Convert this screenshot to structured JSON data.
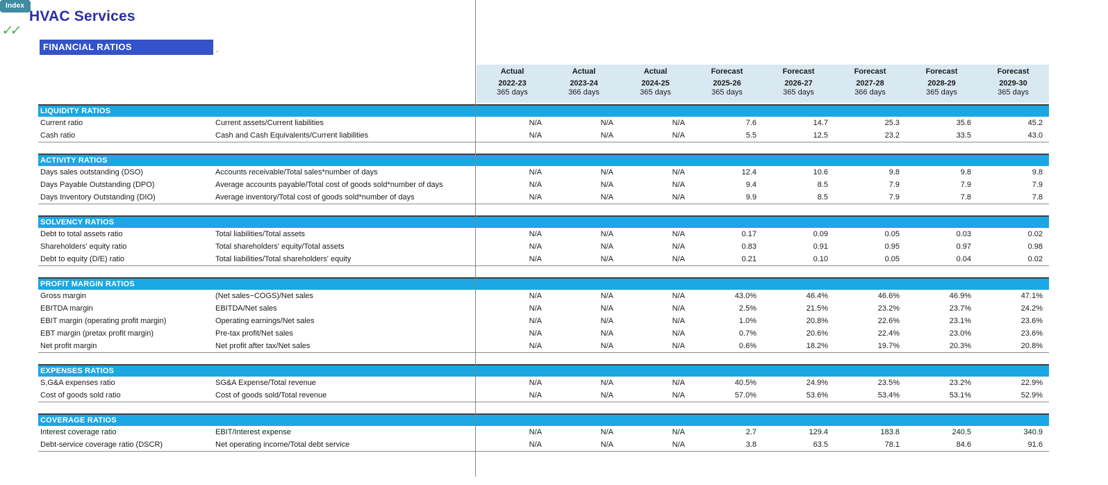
{
  "header": {
    "index_button": "Index",
    "checkmarks": "✓✓",
    "title": "HVAC Services",
    "banner": "FINANCIAL RATIOS",
    "banner_suffix": "."
  },
  "columns": [
    {
      "type": "Actual",
      "year": "2022-23",
      "days": "365 days"
    },
    {
      "type": "Actual",
      "year": "2023-24",
      "days": "366 days"
    },
    {
      "type": "Actual",
      "year": "2024-25",
      "days": "365 days"
    },
    {
      "type": "Forecast",
      "year": "2025-26",
      "days": "365 days"
    },
    {
      "type": "Forecast",
      "year": "2026-27",
      "days": "365 days"
    },
    {
      "type": "Forecast",
      "year": "2027-28",
      "days": "366 days"
    },
    {
      "type": "Forecast",
      "year": "2028-29",
      "days": "365 days"
    },
    {
      "type": "Forecast",
      "year": "2029-30",
      "days": "365 days"
    }
  ],
  "sections": [
    {
      "title": "LIQUIDITY RATIOS",
      "rows": [
        {
          "label": "Current ratio",
          "formula": "Current assets/Current liabilities",
          "values": [
            "N/A",
            "N/A",
            "N/A",
            "7.6",
            "14.7",
            "25.3",
            "35.6",
            "45.2"
          ]
        },
        {
          "label": "Cash ratio",
          "formula": "Cash and Cash Equivalents/Current liabilities",
          "values": [
            "N/A",
            "N/A",
            "N/A",
            "5.5",
            "12.5",
            "23.2",
            "33.5",
            "43.0"
          ]
        }
      ]
    },
    {
      "title": "ACTIVITY RATIOS",
      "rows": [
        {
          "label": "Days sales outstanding (DSO)",
          "formula": "Accounts receivable/Total sales*number of days",
          "values": [
            "N/A",
            "N/A",
            "N/A",
            "12.4",
            "10.6",
            "9.8",
            "9.8",
            "9.8"
          ]
        },
        {
          "label": "Days Payable Outstanding (DPO)",
          "formula": "Average accounts payable/Total cost of goods sold*number of days",
          "values": [
            "N/A",
            "N/A",
            "N/A",
            "9.4",
            "8.5",
            "7.9",
            "7.9",
            "7.9"
          ]
        },
        {
          "label": "Days Inventory Outstanding (DIO)",
          "formula": "Average inventory/Total cost of goods sold*number of days",
          "values": [
            "N/A",
            "N/A",
            "N/A",
            "9.9",
            "8.5",
            "7.9",
            "7.8",
            "7.8"
          ]
        }
      ]
    },
    {
      "title": "SOLVENCY RATIOS",
      "rows": [
        {
          "label": "Debt to total assets ratio",
          "formula": "Total liabilities/Total assets",
          "values": [
            "N/A",
            "N/A",
            "N/A",
            "0.17",
            "0.09",
            "0.05",
            "0.03",
            "0.02"
          ]
        },
        {
          "label": "Shareholders' equity ratio",
          "formula": "Total shareholders' equity/Total assets",
          "values": [
            "N/A",
            "N/A",
            "N/A",
            "0.83",
            "0.91",
            "0.95",
            "0.97",
            "0.98"
          ]
        },
        {
          "label": "Debt to equity (D/E) ratio",
          "formula": "Total liabilities/Total shareholders' equity",
          "values": [
            "N/A",
            "N/A",
            "N/A",
            "0.21",
            "0.10",
            "0.05",
            "0.04",
            "0.02"
          ]
        }
      ]
    },
    {
      "title": "PROFIT MARGIN RATIOS",
      "rows": [
        {
          "label": "Gross margin",
          "formula": "(Net sales−COGS)/Net sales",
          "values": [
            "N/A",
            "N/A",
            "N/A",
            "43.0%",
            "46.4%",
            "46.6%",
            "46.9%",
            "47.1%"
          ]
        },
        {
          "label": "EBITDA margin",
          "formula": "EBITDA/Net sales",
          "values": [
            "N/A",
            "N/A",
            "N/A",
            "2.5%",
            "21.5%",
            "23.2%",
            "23.7%",
            "24.2%"
          ]
        },
        {
          "label": "EBIT margin (operating profit margin)",
          "formula": "Operating earnings/Net sales",
          "values": [
            "N/A",
            "N/A",
            "N/A",
            "1.0%",
            "20.8%",
            "22.6%",
            "23.1%",
            "23.6%"
          ]
        },
        {
          "label": "EBT margin (pretax profit margin)",
          "formula": "Pre-tax profit/Net sales",
          "values": [
            "N/A",
            "N/A",
            "N/A",
            "0.7%",
            "20.6%",
            "22.4%",
            "23.0%",
            "23.6%"
          ]
        },
        {
          "label": "Net profit margin",
          "formula": "Net profit after tax/Net sales",
          "values": [
            "N/A",
            "N/A",
            "N/A",
            "0.6%",
            "18.2%",
            "19.7%",
            "20.3%",
            "20.8%"
          ]
        }
      ]
    },
    {
      "title": "EXPENSES RATIOS",
      "rows": [
        {
          "label": "S,G&A expenses ratio",
          "formula": "SG&A Expense/Total revenue",
          "values": [
            "N/A",
            "N/A",
            "N/A",
            "40.5%",
            "24.9%",
            "23.5%",
            "23.2%",
            "22.9%"
          ]
        },
        {
          "label": "Cost of goods sold ratio",
          "formula": "Cost of goods sold/Total revenue",
          "values": [
            "N/A",
            "N/A",
            "N/A",
            "57.0%",
            "53.6%",
            "53.4%",
            "53.1%",
            "52.9%"
          ]
        }
      ]
    },
    {
      "title": "COVERAGE RATIOS",
      "rows": [
        {
          "label": "Interest coverage ratio",
          "formula": "EBIT/Interest expense",
          "values": [
            "N/A",
            "N/A",
            "N/A",
            "2.7",
            "129.4",
            "183.8",
            "240.5",
            "340.9"
          ]
        },
        {
          "label": "Debt-service coverage ratio (DSCR)",
          "formula": "Net operating income/Total debt service",
          "values": [
            "N/A",
            "N/A",
            "N/A",
            "3.8",
            "63.5",
            "78.1",
            "84.6",
            "91.6"
          ]
        }
      ]
    }
  ],
  "colors": {
    "section_bar_bg": "#1BA7E3",
    "header_band_bg": "#D9E9F2",
    "banner_bg": "#3452C9",
    "title": "#2D2DA5",
    "index_button_bg": "#3F8BA1",
    "checkmark": "#3CB04C",
    "freeze_line": "#858585",
    "section_top_line": "#3F3F3F",
    "section_bottom_line": "#8C8C8C"
  }
}
